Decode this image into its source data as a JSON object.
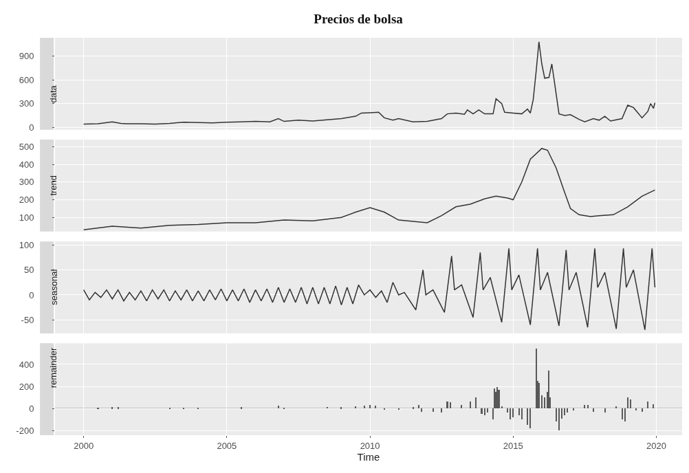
{
  "chart_data": [
    {
      "type": "line",
      "title": "Precios de bolsa",
      "ylabel": "data",
      "color": "#333333",
      "xlim": [
        1999,
        2020.9
      ],
      "ylim": [
        -30,
        1130
      ],
      "xticks": [
        2000,
        2005,
        2010,
        2015,
        2020
      ],
      "yticks": [
        0,
        300,
        600,
        900
      ],
      "grid": true,
      "tick_labels": "y",
      "x": [
        2000.0,
        2000.5,
        2001.0,
        2001.3,
        2001.5,
        2002.0,
        2002.5,
        2003.0,
        2003.5,
        2004.0,
        2004.5,
        2005.0,
        2005.5,
        2006.0,
        2006.5,
        2006.8,
        2007.0,
        2007.5,
        2008.0,
        2008.5,
        2009.0,
        2009.5,
        2009.7,
        2010.0,
        2010.3,
        2010.5,
        2010.8,
        2011.0,
        2011.5,
        2012.0,
        2012.5,
        2012.7,
        2013.0,
        2013.3,
        2013.4,
        2013.6,
        2013.8,
        2014.0,
        2014.3,
        2014.4,
        2014.6,
        2014.7,
        2015.0,
        2015.3,
        2015.5,
        2015.6,
        2015.7,
        2015.8,
        2015.9,
        2016.0,
        2016.1,
        2016.25,
        2016.35,
        2016.45,
        2016.6,
        2016.8,
        2017.0,
        2017.3,
        2017.5,
        2017.8,
        2018.0,
        2018.2,
        2018.4,
        2018.8,
        2019.0,
        2019.2,
        2019.5,
        2019.7,
        2019.8,
        2019.9,
        2019.95
      ],
      "values": [
        40,
        45,
        70,
        50,
        45,
        45,
        40,
        50,
        65,
        60,
        55,
        65,
        70,
        75,
        70,
        110,
        75,
        90,
        80,
        95,
        110,
        140,
        180,
        185,
        190,
        120,
        90,
        110,
        70,
        75,
        110,
        170,
        180,
        165,
        220,
        170,
        220,
        170,
        170,
        360,
        300,
        190,
        180,
        170,
        230,
        180,
        350,
        700,
        1080,
        800,
        620,
        630,
        800,
        550,
        170,
        150,
        160,
        100,
        70,
        110,
        90,
        140,
        80,
        110,
        280,
        250,
        120,
        200,
        300,
        240,
        310
      ]
    },
    {
      "type": "line",
      "ylabel": "trend",
      "color": "#333333",
      "xlim": [
        1999,
        2020.9
      ],
      "ylim": [
        20,
        540
      ],
      "xticks": [
        2000,
        2005,
        2010,
        2015,
        2020
      ],
      "yticks": [
        100,
        200,
        300,
        400,
        500
      ],
      "grid": true,
      "tick_labels": "y",
      "x": [
        2000.0,
        2001.0,
        2002.0,
        2003.0,
        2004.0,
        2005.0,
        2006.0,
        2007.0,
        2008.0,
        2009.0,
        2009.5,
        2010.0,
        2010.5,
        2011.0,
        2012.0,
        2012.5,
        2013.0,
        2013.5,
        2014.0,
        2014.4,
        2014.8,
        2015.0,
        2015.3,
        2015.6,
        2016.0,
        2016.2,
        2016.5,
        2016.8,
        2017.0,
        2017.3,
        2017.7,
        2018.0,
        2018.5,
        2019.0,
        2019.5,
        2019.95
      ],
      "values": [
        30,
        50,
        40,
        55,
        60,
        70,
        70,
        85,
        80,
        100,
        130,
        155,
        130,
        85,
        70,
        110,
        160,
        175,
        205,
        220,
        210,
        200,
        300,
        430,
        490,
        480,
        380,
        240,
        150,
        115,
        105,
        110,
        115,
        160,
        220,
        255
      ]
    },
    {
      "type": "line",
      "ylabel": "seasonal",
      "color": "#333333",
      "xlim": [
        1999,
        2020.9
      ],
      "ylim": [
        -77,
        107
      ],
      "xticks": [
        2000,
        2005,
        2010,
        2015,
        2020
      ],
      "yticks": [
        -50,
        0,
        50,
        100
      ],
      "grid": true,
      "tick_labels": "y",
      "x": [
        2000.0,
        2000.2,
        2000.4,
        2000.6,
        2000.8,
        2001.0,
        2001.2,
        2001.4,
        2001.6,
        2001.8,
        2002.0,
        2002.2,
        2002.4,
        2002.6,
        2002.8,
        2003.0,
        2003.2,
        2003.4,
        2003.6,
        2003.8,
        2004.0,
        2004.2,
        2004.4,
        2004.6,
        2004.8,
        2005.0,
        2005.2,
        2005.4,
        2005.6,
        2005.8,
        2006.0,
        2006.2,
        2006.4,
        2006.6,
        2006.8,
        2007.0,
        2007.2,
        2007.4,
        2007.6,
        2007.8,
        2008.0,
        2008.2,
        2008.4,
        2008.6,
        2008.8,
        2009.0,
        2009.2,
        2009.4,
        2009.6,
        2009.8,
        2010.0,
        2010.2,
        2010.4,
        2010.6,
        2010.8,
        2011.0,
        2011.2,
        2011.6,
        2011.85,
        2011.95,
        2012.2,
        2012.6,
        2012.85,
        2012.95,
        2013.2,
        2013.6,
        2013.85,
        2013.95,
        2014.2,
        2014.6,
        2014.85,
        2014.95,
        2015.2,
        2015.6,
        2015.85,
        2015.95,
        2016.2,
        2016.6,
        2016.85,
        2016.95,
        2017.2,
        2017.6,
        2017.85,
        2017.95,
        2018.2,
        2018.6,
        2018.85,
        2018.95,
        2019.2,
        2019.6,
        2019.85,
        2019.95
      ],
      "values": [
        10,
        -10,
        5,
        -5,
        10,
        -8,
        10,
        -12,
        5,
        -10,
        8,
        -12,
        10,
        -8,
        10,
        -12,
        8,
        -10,
        10,
        -12,
        8,
        -12,
        10,
        -10,
        12,
        -12,
        10,
        -12,
        12,
        -15,
        10,
        -12,
        12,
        -15,
        15,
        -15,
        12,
        -15,
        15,
        -18,
        15,
        -18,
        15,
        -18,
        18,
        -20,
        15,
        -18,
        20,
        0,
        10,
        -5,
        8,
        -15,
        25,
        0,
        5,
        -30,
        50,
        0,
        10,
        -35,
        78,
        10,
        20,
        -45,
        85,
        10,
        35,
        -55,
        93,
        10,
        40,
        -60,
        93,
        10,
        45,
        -62,
        90,
        10,
        45,
        -65,
        93,
        15,
        45,
        -68,
        93,
        15,
        50,
        -70,
        93,
        15
      ]
    },
    {
      "type": "bar",
      "ylabel": "remainder",
      "xlabel": "Time",
      "color": "#595959",
      "xlim": [
        1999,
        2020.9
      ],
      "ylim": [
        -240,
        590
      ],
      "xticks": [
        2000,
        2005,
        2010,
        2015,
        2020
      ],
      "yticks": [
        -200,
        0,
        200,
        400
      ],
      "grid": true,
      "ref_lines": [
        {
          "axis": "y",
          "value": 0,
          "color": "#333333"
        }
      ],
      "x": [
        2000.5,
        2001.0,
        2001.2,
        2003.0,
        2003.5,
        2004.0,
        2005.5,
        2006.8,
        2007.0,
        2008.5,
        2009.0,
        2009.5,
        2009.8,
        2010.0,
        2010.2,
        2010.5,
        2011.0,
        2011.5,
        2011.7,
        2011.8,
        2012.2,
        2012.5,
        2012.7,
        2012.8,
        2013.2,
        2013.5,
        2013.7,
        2013.9,
        2014.0,
        2014.1,
        2014.3,
        2014.35,
        2014.4,
        2014.45,
        2014.5,
        2014.6,
        2014.8,
        2014.9,
        2015.0,
        2015.2,
        2015.3,
        2015.5,
        2015.6,
        2015.8,
        2015.85,
        2015.9,
        2016.0,
        2016.1,
        2016.2,
        2016.25,
        2016.3,
        2016.5,
        2016.6,
        2016.7,
        2016.8,
        2016.9,
        2017.1,
        2017.5,
        2017.6,
        2017.8,
        2018.2,
        2018.6,
        2018.8,
        2018.9,
        2019.0,
        2019.1,
        2019.3,
        2019.5,
        2019.7,
        2019.9
      ],
      "values": [
        8,
        10,
        12,
        8,
        8,
        5,
        10,
        25,
        8,
        15,
        10,
        20,
        25,
        30,
        25,
        -10,
        -10,
        10,
        30,
        -30,
        -30,
        -40,
        60,
        55,
        30,
        60,
        100,
        -50,
        -60,
        -40,
        -100,
        180,
        150,
        190,
        170,
        20,
        -40,
        -100,
        -80,
        -60,
        -100,
        -150,
        -180,
        540,
        250,
        230,
        120,
        100,
        150,
        340,
        100,
        -120,
        -200,
        -90,
        -60,
        -40,
        -20,
        30,
        30,
        -30,
        -40,
        20,
        -100,
        -120,
        100,
        80,
        -20,
        -30,
        60,
        40
      ]
    }
  ]
}
